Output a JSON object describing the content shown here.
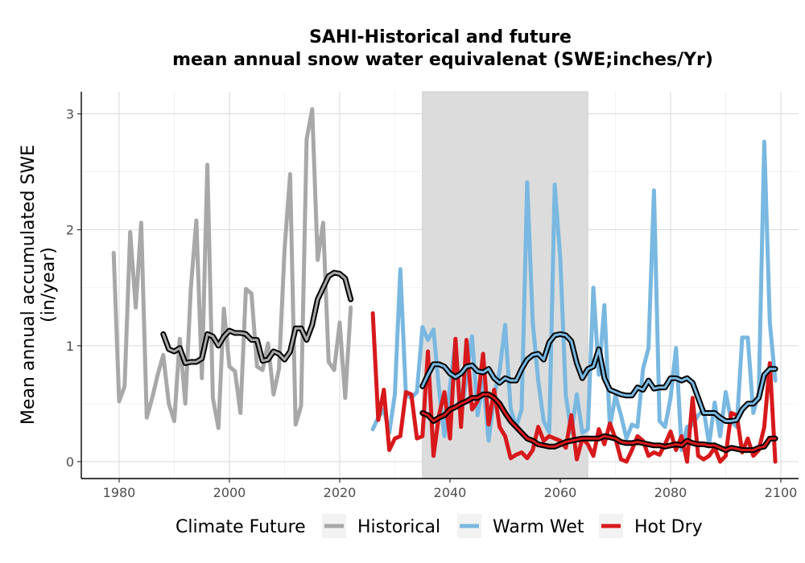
{
  "chart_data": {
    "type": "line",
    "title_line1": "SAHI-Historical and future",
    "title_line2": "mean annual snow water equivalenat (SWE;inches/Yr)",
    "ylabel_line1": "Mean annual accumulated SWE",
    "ylabel_line2": "(in/year)",
    "xlabel": "",
    "xlim": [
      1975,
      2100
    ],
    "ylim": [
      0,
      3
    ],
    "xticks": [
      1980,
      2000,
      2020,
      2040,
      2060,
      2080,
      2100
    ],
    "yticks": [
      0,
      1,
      2,
      3
    ],
    "grid": true,
    "shaded_period": [
      2035,
      2065
    ],
    "legend": {
      "title": "Climate Future",
      "position": "bottom",
      "entries": [
        "Historical",
        "Warm Wet",
        "Hot Dry"
      ]
    },
    "colors": {
      "Historical": "#a8a8a8",
      "Warm Wet": "#79b8e0",
      "Hot Dry": "#d7191c",
      "smooth": "#000000",
      "shade": "#dcdcdc"
    },
    "series": [
      {
        "name": "Historical",
        "years": [
          1979,
          1980,
          1981,
          1982,
          1983,
          1984,
          1985,
          1986,
          1987,
          1988,
          1989,
          1990,
          1991,
          1992,
          1993,
          1994,
          1995,
          1996,
          1997,
          1998,
          1999,
          2000,
          2001,
          2002,
          2003,
          2004,
          2005,
          2006,
          2007,
          2008,
          2009,
          2010,
          2011,
          2012,
          2013,
          2014,
          2015,
          2016,
          2017,
          2018,
          2019,
          2020,
          2021,
          2022
        ],
        "values": [
          1.8,
          0.52,
          0.65,
          1.98,
          1.33,
          2.06,
          0.38,
          0.55,
          0.75,
          0.92,
          0.5,
          0.35,
          1.06,
          0.5,
          1.5,
          2.08,
          0.72,
          2.56,
          0.55,
          0.29,
          1.32,
          0.82,
          0.78,
          0.42,
          1.49,
          1.45,
          0.82,
          0.79,
          1.02,
          0.58,
          0.8,
          1.83,
          2.48,
          0.32,
          0.48,
          2.78,
          3.04,
          1.74,
          2.06,
          0.86,
          0.79,
          1.2,
          0.55,
          1.33
        ]
      },
      {
        "name": "Historical smooth",
        "years": [
          1988,
          1989,
          1990,
          1991,
          1992,
          1993,
          1994,
          1995,
          1996,
          1997,
          1998,
          1999,
          2000,
          2001,
          2002,
          2003,
          2004,
          2005,
          2006,
          2007,
          2008,
          2009,
          2010,
          2011,
          2012,
          2013,
          2014,
          2015,
          2016,
          2017,
          2018,
          2019,
          2020,
          2021,
          2022
        ],
        "values": [
          1.1,
          0.97,
          0.95,
          0.98,
          0.85,
          0.86,
          0.86,
          0.89,
          1.1,
          1.08,
          1.0,
          1.08,
          1.13,
          1.11,
          1.11,
          1.1,
          1.05,
          1.05,
          0.87,
          0.88,
          0.95,
          0.93,
          0.88,
          0.95,
          1.15,
          1.15,
          1.05,
          1.18,
          1.4,
          1.5,
          1.6,
          1.63,
          1.62,
          1.58,
          1.4
        ]
      },
      {
        "name": "Warm Wet",
        "years": [
          2026,
          2027,
          2028,
          2029,
          2030,
          2031,
          2032,
          2033,
          2034,
          2035,
          2036,
          2037,
          2038,
          2039,
          2040,
          2041,
          2042,
          2043,
          2044,
          2045,
          2046,
          2047,
          2048,
          2049,
          2050,
          2051,
          2052,
          2053,
          2054,
          2055,
          2056,
          2057,
          2058,
          2059,
          2060,
          2061,
          2062,
          2063,
          2064,
          2065,
          2066,
          2067,
          2068,
          2069,
          2070,
          2071,
          2072,
          2073,
          2074,
          2075,
          2076,
          2077,
          2078,
          2079,
          2080,
          2081,
          2082,
          2083,
          2084,
          2085,
          2086,
          2087,
          2088,
          2089,
          2090,
          2091,
          2092,
          2093,
          2094,
          2095,
          2096,
          2097,
          2098,
          2099
        ],
        "values": [
          0.28,
          0.38,
          0.45,
          0.25,
          0.58,
          1.66,
          0.58,
          0.55,
          0.6,
          1.16,
          1.05,
          1.14,
          0.63,
          0.22,
          0.65,
          1.04,
          0.38,
          0.75,
          1.08,
          0.4,
          0.7,
          0.18,
          0.57,
          0.78,
          1.18,
          0.46,
          0.3,
          0.45,
          2.41,
          1.2,
          0.7,
          0.35,
          0.25,
          2.39,
          1.75,
          0.57,
          0.25,
          0.58,
          0.25,
          0.28,
          1.5,
          0.75,
          1.35,
          0.3,
          0.57,
          0.4,
          0.2,
          0.32,
          0.3,
          0.8,
          0.98,
          2.34,
          0.35,
          0.3,
          0.55,
          0.98,
          0.1,
          0.3,
          0.32,
          0.4,
          0.45,
          0.15,
          0.51,
          0.22,
          0.6,
          0.35,
          0.3,
          1.07,
          1.07,
          0.42,
          0.6,
          2.76,
          1.2,
          0.7
        ]
      },
      {
        "name": "Warm Wet smooth",
        "years": [
          2035,
          2036,
          2037,
          2038,
          2039,
          2040,
          2041,
          2042,
          2043,
          2044,
          2045,
          2046,
          2047,
          2048,
          2049,
          2050,
          2051,
          2052,
          2053,
          2054,
          2055,
          2056,
          2057,
          2058,
          2059,
          2060,
          2061,
          2062,
          2063,
          2064,
          2065,
          2066,
          2067,
          2068,
          2069,
          2070,
          2071,
          2072,
          2073,
          2074,
          2075,
          2076,
          2077,
          2078,
          2079,
          2080,
          2081,
          2082,
          2083,
          2084,
          2085,
          2086,
          2087,
          2088,
          2089,
          2090,
          2091,
          2092,
          2093,
          2094,
          2095,
          2096,
          2097,
          2098,
          2099
        ],
        "values": [
          0.65,
          0.75,
          0.84,
          0.84,
          0.82,
          0.76,
          0.73,
          0.76,
          0.82,
          0.83,
          0.78,
          0.77,
          0.8,
          0.72,
          0.68,
          0.72,
          0.7,
          0.7,
          0.8,
          0.88,
          0.92,
          0.93,
          0.88,
          1.03,
          1.09,
          1.1,
          1.09,
          1.04,
          0.85,
          0.72,
          0.8,
          0.82,
          0.97,
          0.72,
          0.62,
          0.6,
          0.58,
          0.57,
          0.57,
          0.64,
          0.62,
          0.7,
          0.63,
          0.64,
          0.64,
          0.72,
          0.72,
          0.7,
          0.72,
          0.68,
          0.55,
          0.42,
          0.42,
          0.42,
          0.38,
          0.35,
          0.35,
          0.36,
          0.45,
          0.5,
          0.5,
          0.55,
          0.75,
          0.8,
          0.8
        ]
      },
      {
        "name": "Hot Dry",
        "years": [
          2026,
          2027,
          2028,
          2029,
          2030,
          2031,
          2032,
          2033,
          2034,
          2035,
          2036,
          2037,
          2038,
          2039,
          2040,
          2041,
          2042,
          2043,
          2044,
          2045,
          2046,
          2047,
          2048,
          2049,
          2050,
          2051,
          2052,
          2053,
          2054,
          2055,
          2056,
          2057,
          2058,
          2059,
          2060,
          2061,
          2062,
          2063,
          2064,
          2065,
          2066,
          2067,
          2068,
          2069,
          2070,
          2071,
          2072,
          2073,
          2074,
          2075,
          2076,
          2077,
          2078,
          2079,
          2080,
          2081,
          2082,
          2083,
          2084,
          2085,
          2086,
          2087,
          2088,
          2089,
          2090,
          2091,
          2092,
          2093,
          2094,
          2095,
          2096,
          2097,
          2098,
          2099
        ],
        "values": [
          1.28,
          0.36,
          0.62,
          0.1,
          0.2,
          0.22,
          0.6,
          0.58,
          0.2,
          0.22,
          0.95,
          0.05,
          0.4,
          0.6,
          0.2,
          1.06,
          0.3,
          1.05,
          0.45,
          0.52,
          0.93,
          0.32,
          0.62,
          0.3,
          0.22,
          0.03,
          0.06,
          0.08,
          0.03,
          0.1,
          0.3,
          0.18,
          0.22,
          0.2,
          0.18,
          0.12,
          0.4,
          0.02,
          0.2,
          0.15,
          0.05,
          0.28,
          0.15,
          0.33,
          0.2,
          0.02,
          0.0,
          0.1,
          0.22,
          0.18,
          0.05,
          0.08,
          0.06,
          0.15,
          0.26,
          0.1,
          0.22,
          0.0,
          0.55,
          0.05,
          0.02,
          0.05,
          0.12,
          0.0,
          0.05,
          0.42,
          0.4,
          0.08,
          0.2,
          0.05,
          0.1,
          0.3,
          0.85,
          0.0
        ]
      },
      {
        "name": "Hot Dry smooth",
        "years": [
          2035,
          2036,
          2037,
          2038,
          2039,
          2040,
          2041,
          2042,
          2043,
          2044,
          2045,
          2046,
          2047,
          2048,
          2049,
          2050,
          2051,
          2052,
          2053,
          2054,
          2055,
          2056,
          2057,
          2058,
          2059,
          2060,
          2061,
          2062,
          2063,
          2064,
          2065,
          2066,
          2067,
          2068,
          2069,
          2070,
          2071,
          2072,
          2073,
          2074,
          2075,
          2076,
          2077,
          2078,
          2079,
          2080,
          2081,
          2082,
          2083,
          2084,
          2085,
          2086,
          2087,
          2088,
          2089,
          2090,
          2091,
          2092,
          2093,
          2094,
          2095,
          2096,
          2097,
          2098,
          2099
        ],
        "values": [
          0.42,
          0.4,
          0.35,
          0.38,
          0.4,
          0.45,
          0.47,
          0.5,
          0.52,
          0.55,
          0.55,
          0.58,
          0.58,
          0.55,
          0.5,
          0.42,
          0.35,
          0.3,
          0.25,
          0.2,
          0.18,
          0.15,
          0.14,
          0.13,
          0.13,
          0.15,
          0.17,
          0.18,
          0.19,
          0.2,
          0.2,
          0.2,
          0.2,
          0.22,
          0.21,
          0.2,
          0.17,
          0.16,
          0.16,
          0.17,
          0.16,
          0.15,
          0.14,
          0.14,
          0.13,
          0.14,
          0.15,
          0.14,
          0.18,
          0.16,
          0.15,
          0.15,
          0.14,
          0.14,
          0.12,
          0.1,
          0.12,
          0.11,
          0.1,
          0.1,
          0.1,
          0.12,
          0.13,
          0.2,
          0.2
        ]
      }
    ]
  }
}
